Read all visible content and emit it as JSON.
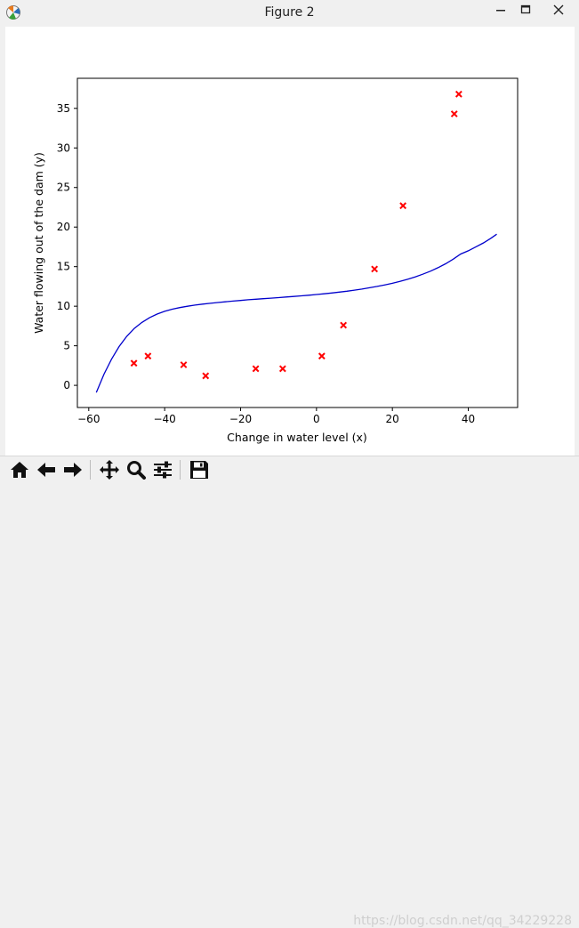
{
  "window": {
    "title": "Figure 2",
    "icon": "matplotlib-figure-icon"
  },
  "titlebar_buttons": [
    {
      "name": "minimize",
      "icon": "minimize-icon"
    },
    {
      "name": "maximize",
      "icon": "maximize-icon"
    },
    {
      "name": "close",
      "icon": "close-icon"
    }
  ],
  "toolbar": {
    "buttons": [
      {
        "name": "home",
        "icon": "home-icon"
      },
      {
        "name": "back",
        "icon": "arrow-left-icon"
      },
      {
        "name": "forward",
        "icon": "arrow-right-icon"
      },
      {
        "name": "pan",
        "icon": "move-icon"
      },
      {
        "name": "zoom",
        "icon": "magnifier-icon"
      },
      {
        "name": "configure-subplots",
        "icon": "sliders-icon"
      },
      {
        "name": "save",
        "icon": "floppy-disk-icon"
      }
    ]
  },
  "watermark": "https://blog.csdn.net/qq_34229228",
  "chart_data": {
    "type": "scatter",
    "title": "",
    "xlabel": "Change in water level (x)",
    "ylabel": "Water flowing out of the dam (y)",
    "xlim": [
      -63,
      53
    ],
    "ylim": [
      -2.8,
      38.8
    ],
    "xticks": [
      -60,
      -40,
      -20,
      0,
      20,
      40
    ],
    "yticks": [
      0,
      5,
      10,
      15,
      20,
      25,
      30,
      35
    ],
    "xtick_labels": [
      "−60",
      "−40",
      "−20",
      "0",
      "20",
      "40"
    ],
    "ytick_labels": [
      "0",
      "5",
      "10",
      "15",
      "20",
      "25",
      "30",
      "35"
    ],
    "grid": false,
    "series": [
      {
        "kind": "scatter",
        "marker": "x",
        "color": "#ff0000",
        "x": [
          -48.1,
          -44.4,
          -35.0,
          -29.2,
          -16.0,
          -8.9,
          1.4,
          7.1,
          15.3,
          22.8,
          36.3,
          37.5
        ],
        "y": [
          2.8,
          3.7,
          2.6,
          1.2,
          2.1,
          2.1,
          3.7,
          7.6,
          14.7,
          22.7,
          34.3,
          36.8
        ]
      },
      {
        "kind": "line",
        "color": "#0000cc",
        "x": [
          -58,
          -56,
          -54,
          -52,
          -50,
          -48,
          -46,
          -44,
          -42,
          -40,
          -38,
          -36,
          -34,
          -32,
          -30,
          -28,
          -26,
          -24,
          -22,
          -20,
          -18,
          -16,
          -14,
          -12,
          -10,
          -8,
          -6,
          -4,
          -2,
          0,
          2,
          4,
          6,
          8,
          10,
          12,
          14,
          16,
          18,
          20,
          22,
          24,
          26,
          28,
          30,
          32,
          34,
          36,
          38,
          40,
          42,
          44,
          46,
          47.5
        ],
        "y": [
          -0.9,
          1.4,
          3.3,
          4.9,
          6.2,
          7.2,
          7.95,
          8.55,
          9.0,
          9.35,
          9.62,
          9.83,
          10.0,
          10.14,
          10.26,
          10.37,
          10.47,
          10.56,
          10.65,
          10.73,
          10.81,
          10.88,
          10.95,
          11.02,
          11.09,
          11.16,
          11.23,
          11.31,
          11.39,
          11.48,
          11.57,
          11.67,
          11.78,
          11.9,
          12.03,
          12.17,
          12.33,
          12.5,
          12.69,
          12.9,
          13.14,
          13.4,
          13.7,
          14.04,
          14.42,
          14.86,
          15.36,
          15.94,
          16.6,
          17.0,
          17.5,
          18.0,
          18.6,
          19.1
        ]
      }
    ]
  }
}
